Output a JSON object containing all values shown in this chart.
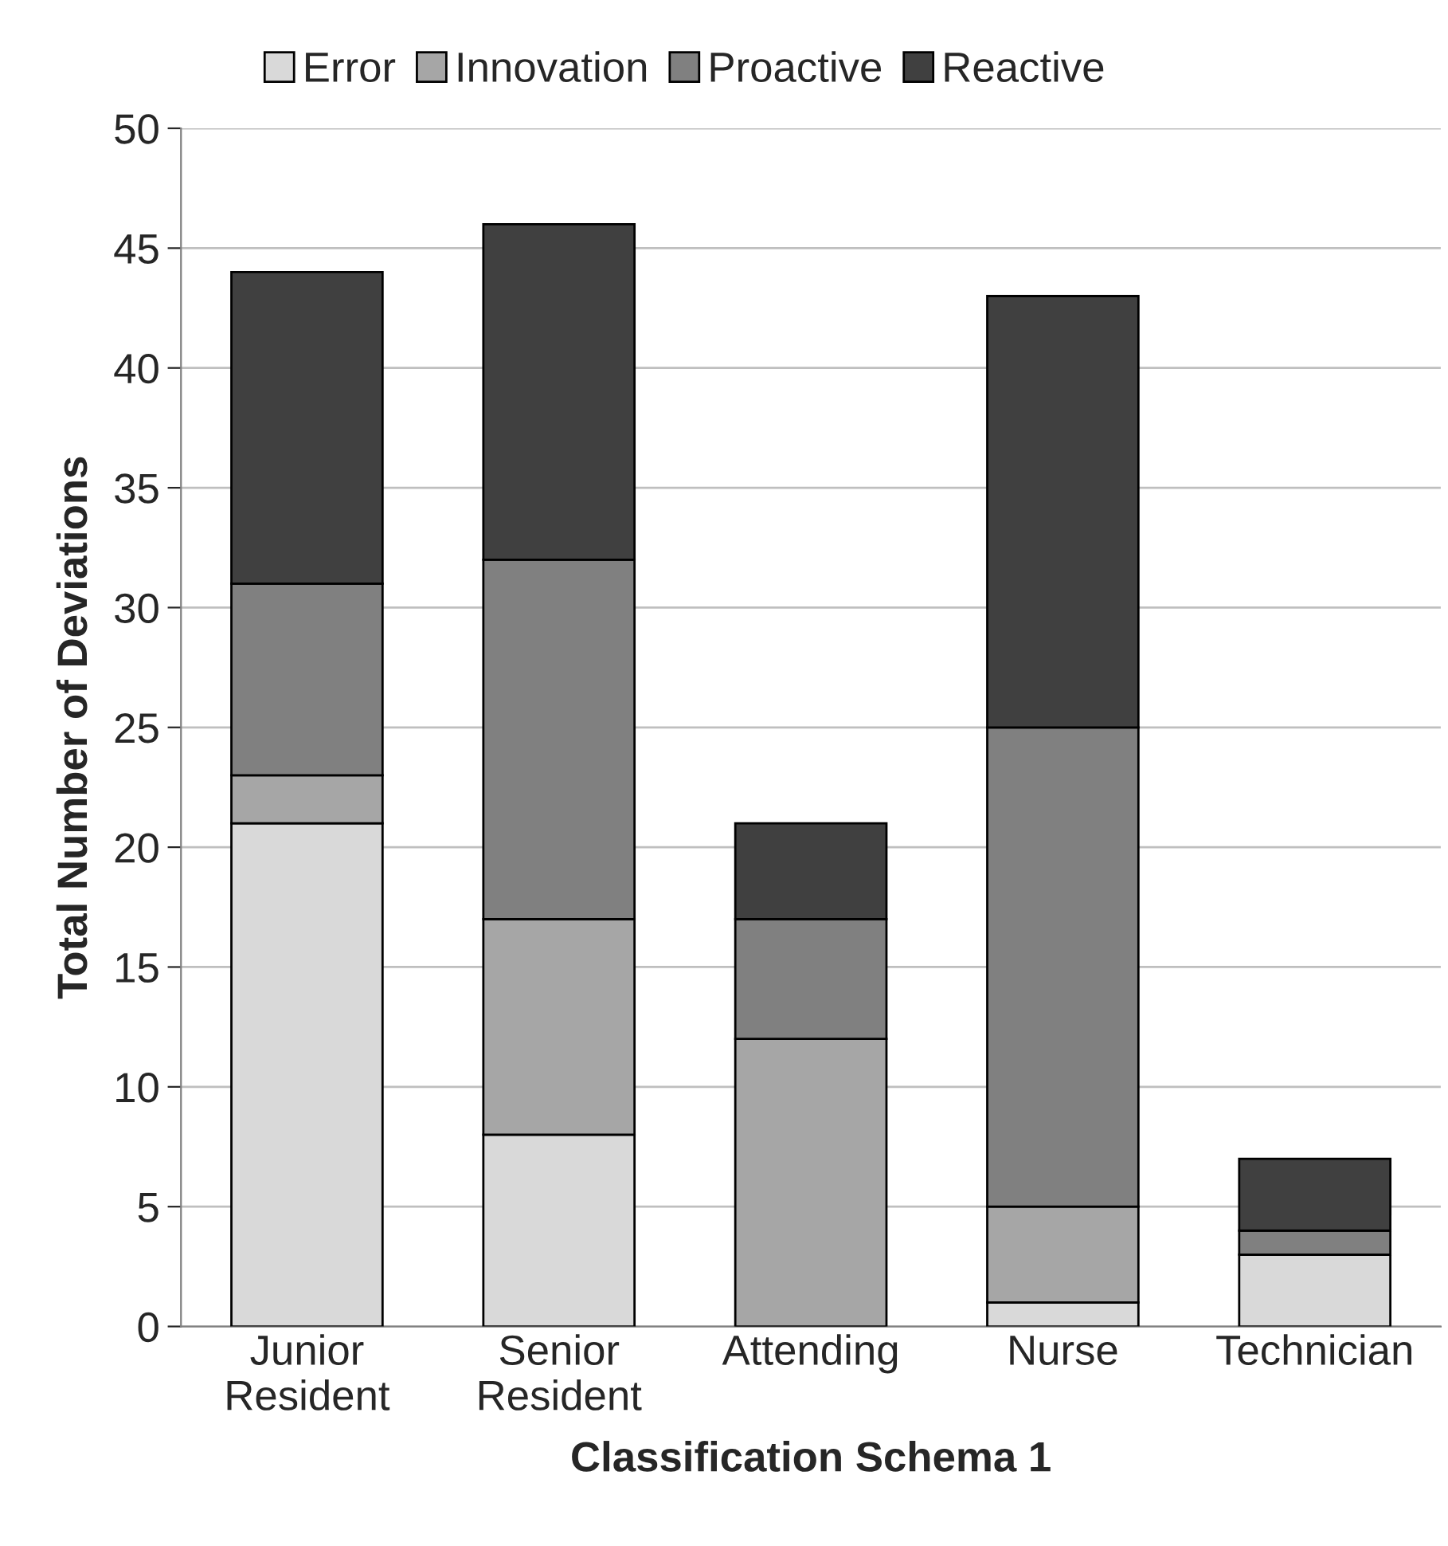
{
  "chart_data": {
    "type": "bar",
    "stacked": true,
    "xlabel": "Classification Schema 1",
    "ylabel": "Total Number of Deviations",
    "categories": [
      "Junior\nResident",
      "Senior\nResident",
      "Attending",
      "Nurse",
      "Technician"
    ],
    "series": [
      {
        "name": "Error",
        "color": "#d9d9d9",
        "values": [
          21,
          8,
          0,
          1,
          3
        ]
      },
      {
        "name": "Innovation",
        "color": "#a6a6a6",
        "values": [
          2,
          9,
          12,
          4,
          0
        ]
      },
      {
        "name": "Proactive",
        "color": "#808080",
        "values": [
          8,
          15,
          5,
          20,
          1
        ]
      },
      {
        "name": "Reactive",
        "color": "#404040",
        "values": [
          13,
          14,
          4,
          18,
          3
        ]
      }
    ],
    "ylim": [
      0,
      50
    ],
    "yticks": [
      0,
      5,
      10,
      15,
      20,
      25,
      30,
      35,
      40,
      45,
      50
    ],
    "grid": "y",
    "legend": "top"
  }
}
